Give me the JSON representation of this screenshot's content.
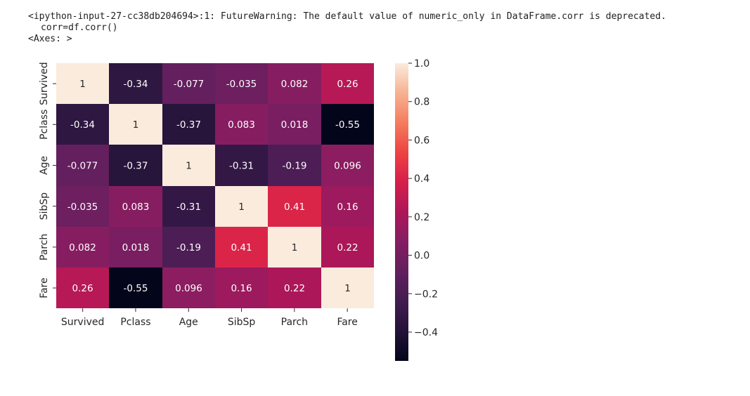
{
  "output": {
    "warning_text": "<ipython-input-27-cc38db204694>:1: FutureWarning: The default value of numeric_only in DataFrame.corr is deprecated.",
    "code_text": "corr=df.corr()",
    "repr_text": "<Axes: >"
  },
  "colors": {
    "text": "#212121",
    "annot_dark_bg_text": "#ffffff",
    "annot_light_bg_text": "#262626",
    "tick": "#262626",
    "colormap": "rocket"
  },
  "chart_data": {
    "type": "heatmap",
    "title": "",
    "xlabel": "",
    "ylabel": "",
    "x_categories": [
      "Survived",
      "Pclass",
      "Age",
      "SibSp",
      "Parch",
      "Fare"
    ],
    "y_categories": [
      "Survived",
      "Pclass",
      "Age",
      "SibSp",
      "Parch",
      "Fare"
    ],
    "values": [
      [
        1,
        -0.34,
        -0.077,
        -0.035,
        0.082,
        0.26
      ],
      [
        -0.34,
        1,
        -0.37,
        0.083,
        0.018,
        -0.55
      ],
      [
        -0.077,
        -0.37,
        1,
        -0.31,
        -0.19,
        0.096
      ],
      [
        -0.035,
        0.083,
        -0.31,
        1,
        0.41,
        0.16
      ],
      [
        0.082,
        0.018,
        -0.19,
        0.41,
        1,
        0.22
      ],
      [
        0.26,
        -0.55,
        0.096,
        0.16,
        0.22,
        1
      ]
    ],
    "annotations": [
      [
        "1",
        "-0.34",
        "-0.077",
        "-0.035",
        "0.082",
        "0.26"
      ],
      [
        "-0.34",
        "1",
        "-0.37",
        "0.083",
        "0.018",
        "-0.55"
      ],
      [
        "-0.077",
        "-0.37",
        "1",
        "-0.31",
        "-0.19",
        "0.096"
      ],
      [
        "-0.035",
        "0.083",
        "-0.31",
        "1",
        "0.41",
        "0.16"
      ],
      [
        "0.082",
        "0.018",
        "-0.19",
        "0.41",
        "1",
        "0.22"
      ],
      [
        "0.26",
        "-0.55",
        "0.096",
        "0.16",
        "0.22",
        "1"
      ]
    ],
    "colorbar": {
      "vmin": -0.55,
      "vmax": 1.0,
      "ticks": [
        1.0,
        0.8,
        0.6,
        0.4,
        0.2,
        0.0,
        -0.2,
        -0.4
      ],
      "tick_labels": [
        "1.0",
        "0.8",
        "0.6",
        "0.4",
        "0.2",
        "0.0",
        "−0.2",
        "−0.4"
      ]
    },
    "grid": false,
    "legend": "colorbar-right"
  }
}
